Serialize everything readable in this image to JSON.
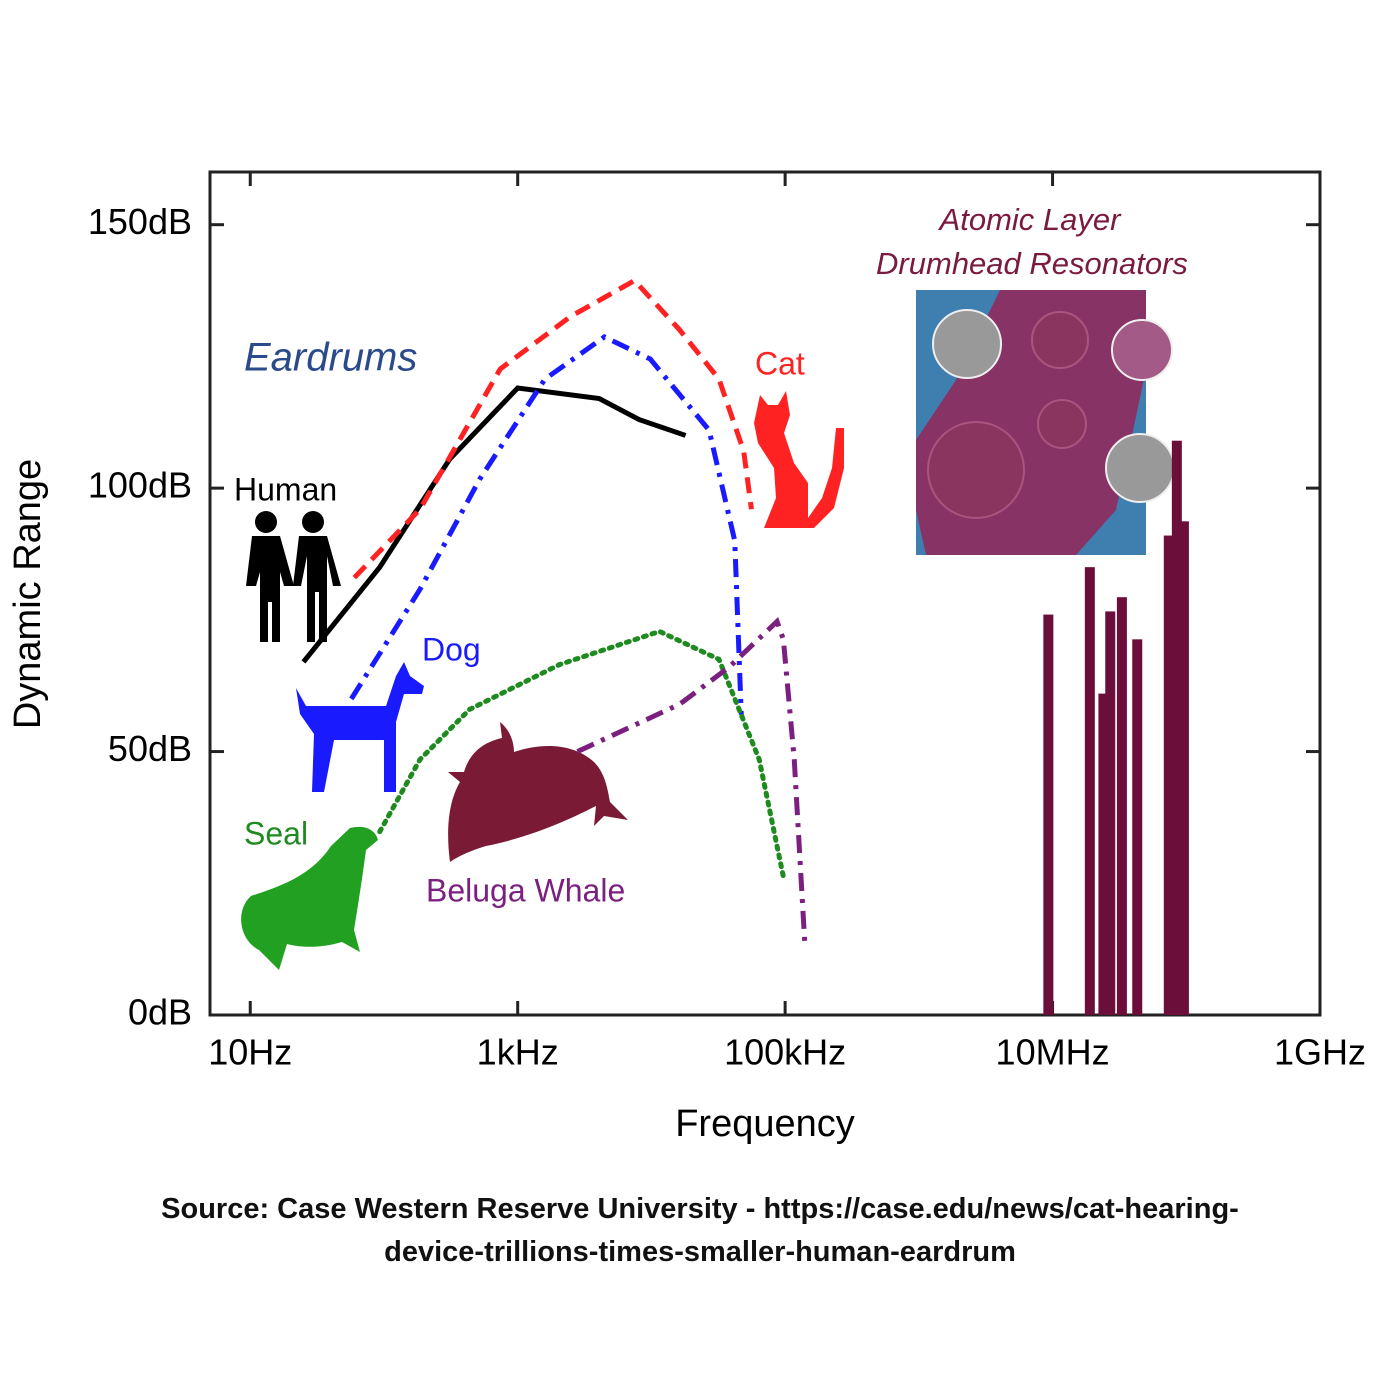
{
  "chart_data": {
    "type": "line",
    "x_scale": "log",
    "xlim": [
      5,
      1000000000
    ],
    "ylim": [
      0,
      160
    ],
    "xticks": [
      {
        "value": 10,
        "label": "10Hz"
      },
      {
        "value": 1000,
        "label": "1kHz"
      },
      {
        "value": 100000,
        "label": "100kHz"
      },
      {
        "value": 10000000,
        "label": "10MHz"
      },
      {
        "value": 1000000000,
        "label": "1GHz"
      }
    ],
    "yticks": [
      {
        "value": 0,
        "label": "0dB"
      },
      {
        "value": 50,
        "label": "50dB"
      },
      {
        "value": 100,
        "label": "100dB"
      },
      {
        "value": 150,
        "label": "150dB"
      }
    ],
    "x_label": "Frequency",
    "y_label": "Dynamic Range",
    "annotation": "Eardrums",
    "inset_title": [
      "Atomic Layer",
      "Drumhead Resonators"
    ],
    "series": [
      {
        "name": "Human",
        "color": "#000000",
        "line_style": "solid",
        "x": [
          25,
          93,
          310,
          1000,
          4070,
          8100,
          18000
        ],
        "values": [
          67,
          85,
          105.5,
          119,
          117,
          113,
          110
        ]
      },
      {
        "name": "Cat",
        "color": "#ff2222",
        "line_style": "dashed",
        "x": [
          60,
          186,
          740,
          2460,
          7470,
          16300,
          32000,
          49000,
          56000
        ],
        "values": [
          83,
          96,
          122.6,
          132.5,
          139.4,
          130,
          120.7,
          107,
          96
        ]
      },
      {
        "name": "Dog",
        "color": "#1a1aff",
        "line_style": "dash-dot",
        "x": [
          57,
          186,
          520,
          1600,
          4450,
          9800,
          27000,
          42000,
          47000
        ],
        "values": [
          60,
          80.8,
          101.7,
          120.7,
          128.7,
          124.5,
          111,
          90,
          57
        ]
      },
      {
        "name": "Seal",
        "color": "#1f8a1f",
        "line_style": "dotted",
        "x": [
          93,
          186,
          437,
          2050,
          11500,
          32000,
          64000,
          98000
        ],
        "values": [
          34.8,
          48.5,
          58,
          66.5,
          72.8,
          67.5,
          48.5,
          25.7
        ]
      },
      {
        "name": "Beluga Whale",
        "color": "#7b2080",
        "line_style": "dash-dot",
        "x": [
          2800,
          16300,
          38000,
          87000,
          97000,
          117000,
          141000
        ],
        "values": [
          50,
          59,
          66,
          74.7,
          71.3,
          48.5,
          12.7
        ]
      }
    ],
    "bars": {
      "color": "#6b0f3a",
      "x": [
        9300000,
        19000000,
        24000000,
        27000000,
        33000000,
        43000000,
        74000000,
        85000000,
        96000000
      ],
      "values": [
        76,
        85,
        61,
        76.6,
        79.3,
        71.3,
        91,
        109,
        93.7
      ]
    }
  },
  "source": "Source: Case Western Reserve University - https://case.edu/news/cat-hearing-device-trillions-times-smaller-human-eardrum"
}
